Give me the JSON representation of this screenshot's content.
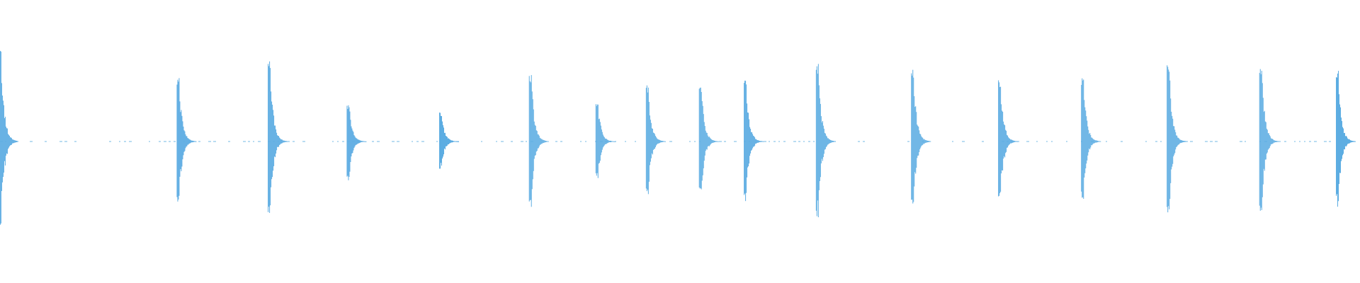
{
  "colors": {
    "waveform": "#5dade2",
    "background": "#ffffff"
  },
  "chart_data": {
    "type": "waveform",
    "title": "",
    "xlabel": "",
    "ylabel": "",
    "ylim": [
      -1,
      1
    ],
    "grid": false,
    "transients": [
      {
        "position": 0.001,
        "peak_top": 0.7,
        "peak_bottom": 0.69
      },
      {
        "position": 0.132,
        "peak_top": 0.46,
        "peak_bottom": 0.46
      },
      {
        "position": 0.199,
        "peak_top": 0.58,
        "peak_bottom": 0.58
      },
      {
        "position": 0.257,
        "peak_top": 0.27,
        "peak_bottom": 0.29
      },
      {
        "position": 0.325,
        "peak_top": 0.21,
        "peak_bottom": 0.2
      },
      {
        "position": 0.391,
        "peak_top": 0.49,
        "peak_bottom": 0.49
      },
      {
        "position": 0.44,
        "peak_top": 0.28,
        "peak_bottom": 0.28
      },
      {
        "position": 0.477,
        "peak_top": 0.4,
        "peak_bottom": 0.41
      },
      {
        "position": 0.516,
        "peak_top": 0.41,
        "peak_bottom": 0.41
      },
      {
        "position": 0.549,
        "peak_top": 0.44,
        "peak_bottom": 0.44
      },
      {
        "position": 0.602,
        "peak_top": 0.56,
        "peak_bottom": 0.56
      },
      {
        "position": 0.672,
        "peak_top": 0.51,
        "peak_bottom": 0.51
      },
      {
        "position": 0.736,
        "peak_top": 0.45,
        "peak_bottom": 0.45
      },
      {
        "position": 0.797,
        "peak_top": 0.46,
        "peak_bottom": 0.46
      },
      {
        "position": 0.86,
        "peak_top": 0.54,
        "peak_bottom": 0.54
      },
      {
        "position": 0.928,
        "peak_top": 0.55,
        "peak_bottom": 0.55
      },
      {
        "position": 0.998,
        "peak_top": 0.5,
        "peak_bottom": 0.48
      }
    ]
  }
}
